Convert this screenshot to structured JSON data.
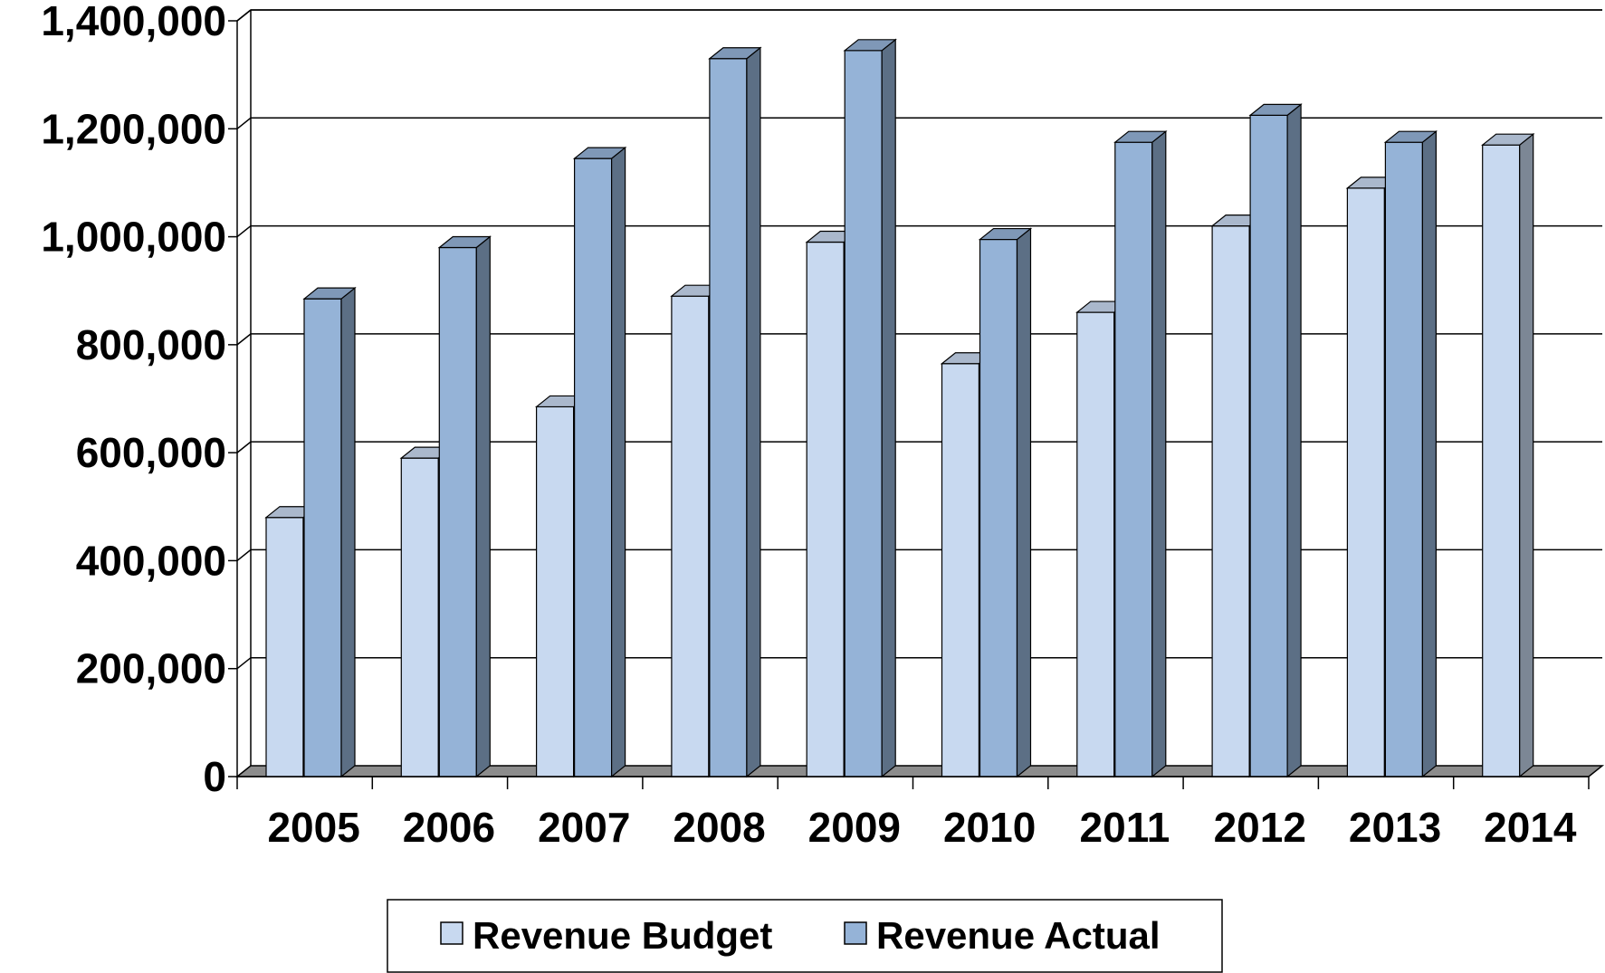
{
  "chart_data": {
    "type": "bar",
    "style": "3d-clustered-column",
    "categories": [
      "2005",
      "2006",
      "2007",
      "2008",
      "2009",
      "2010",
      "2011",
      "2012",
      "2013",
      "2014"
    ],
    "series": [
      {
        "name": "Revenue Budget",
        "color": "#C8D9F0",
        "values": [
          480000,
          590000,
          685000,
          890000,
          990000,
          765000,
          860000,
          1020000,
          1090000,
          1170000
        ]
      },
      {
        "name": "Revenue Actual",
        "color": "#95B3D7",
        "values": [
          885000,
          980000,
          1145000,
          1330000,
          1345000,
          995000,
          1175000,
          1225000,
          1175000,
          null
        ]
      }
    ],
    "ylim": [
      0,
      1400000
    ],
    "yticks": [
      0,
      200000,
      400000,
      600000,
      800000,
      1000000,
      1200000,
      1400000
    ],
    "ytick_labels": [
      "0",
      "200,000",
      "400,000",
      "600,000",
      "800,000",
      "1,000,000",
      "1,200,000",
      "1,400,000"
    ],
    "title": "",
    "xlabel": "",
    "ylabel": "",
    "grid": true,
    "legend_position": "bottom-center"
  }
}
